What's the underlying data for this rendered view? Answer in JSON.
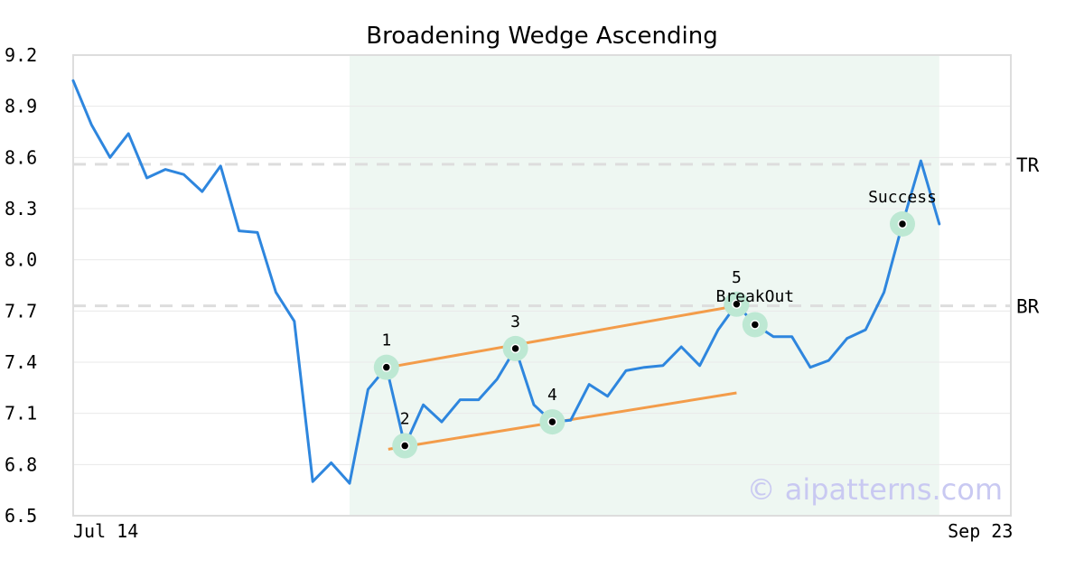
{
  "chart_data": {
    "type": "line",
    "title": "Broadening Wedge Ascending",
    "xlabel": "",
    "ylabel": "",
    "ylim": [
      6.5,
      9.2
    ],
    "yticks": [
      "9.2",
      "8.9",
      "8.6",
      "8.3",
      "8.0",
      "7.7",
      "7.4",
      "7.1",
      "6.8",
      "6.5"
    ],
    "xtick_labels": [
      {
        "index": 0,
        "label": "Jul 14"
      },
      {
        "index": 51,
        "label": "Sep 23"
      }
    ],
    "grid": true,
    "colors": {
      "line": "#2e86de",
      "trend": "#f39c4a",
      "highlight": "#eef7f2",
      "marker_ring": "#bde8d3",
      "level": "#dddddd",
      "frame": "#dddddd",
      "watermark": "#c9c9f2"
    },
    "series": [
      {
        "values": [
          9.05,
          8.79,
          8.6,
          8.74,
          8.48,
          8.53,
          8.5,
          8.4,
          8.55,
          8.17,
          8.16,
          7.81,
          7.64,
          6.7,
          6.81,
          6.69,
          7.24,
          7.37,
          6.91,
          7.15,
          7.05,
          7.18,
          7.18,
          7.3,
          7.48,
          7.15,
          7.05,
          7.06,
          7.27,
          7.2,
          7.35,
          7.37,
          7.38,
          7.49,
          7.38,
          7.59,
          7.74,
          7.62,
          7.55,
          7.55,
          7.37,
          7.41,
          7.54,
          7.59,
          7.81,
          8.21,
          8.58,
          8.21
        ]
      }
    ],
    "highlight_range": [
      15,
      47
    ],
    "levels": [
      {
        "label": "TR",
        "value": 8.56
      },
      {
        "label": "BR",
        "value": 7.73
      }
    ],
    "trendlines": [
      {
        "from": [
          17,
          7.37
        ],
        "to": [
          36,
          7.73
        ]
      },
      {
        "from": [
          17,
          6.89
        ],
        "to": [
          36,
          7.22
        ]
      }
    ],
    "points": [
      {
        "label": "1",
        "index": 17,
        "value": 7.37
      },
      {
        "label": "2",
        "index": 18,
        "value": 6.91
      },
      {
        "label": "3",
        "index": 24,
        "value": 7.48
      },
      {
        "label": "4",
        "index": 26,
        "value": 7.05
      },
      {
        "label": "5",
        "index": 36,
        "value": 7.74
      },
      {
        "label": "BreakOut",
        "index": 37,
        "value": 7.62
      },
      {
        "label": "Success",
        "index": 45,
        "value": 8.21
      }
    ],
    "watermark": "© aipatterns.com"
  }
}
